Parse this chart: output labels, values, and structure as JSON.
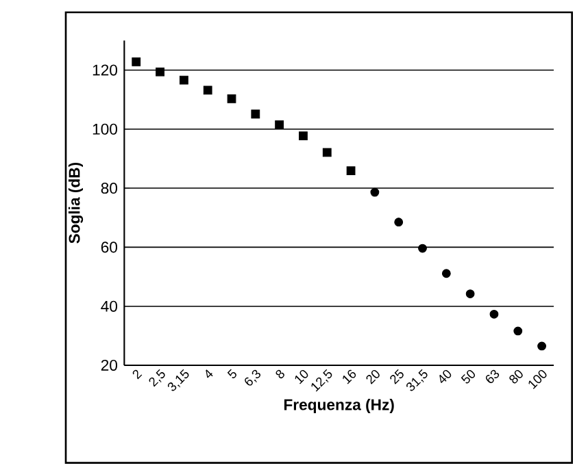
{
  "chart_data": {
    "type": "scatter",
    "xlabel": "Frequenza (Hz)",
    "ylabel": "Soglia (dB)",
    "categories": [
      "2",
      "2,5",
      "3,15",
      "4",
      "5",
      "6,3",
      "8",
      "10",
      "12,5",
      "16",
      "20",
      "25",
      "31,5",
      "40",
      "50",
      "63",
      "80",
      "100"
    ],
    "series": [
      {
        "color": "#000000",
        "marker": "square",
        "values": [
          122.8,
          119.4,
          116.6,
          113.2,
          110.3,
          105.1,
          101.5,
          97.7,
          92.1,
          85.9,
          null,
          null,
          null,
          null,
          null,
          null,
          null,
          null
        ]
      },
      {
        "color": "#000000",
        "marker": "circle",
        "values": [
          null,
          null,
          null,
          null,
          null,
          null,
          null,
          null,
          null,
          null,
          78.6,
          68.5,
          59.6,
          51.1,
          44.2,
          37.3,
          31.6,
          26.5
        ]
      }
    ],
    "ylim": [
      20,
      130
    ],
    "yticks": [
      20,
      40,
      60,
      80,
      100,
      120
    ],
    "grid": "y"
  }
}
